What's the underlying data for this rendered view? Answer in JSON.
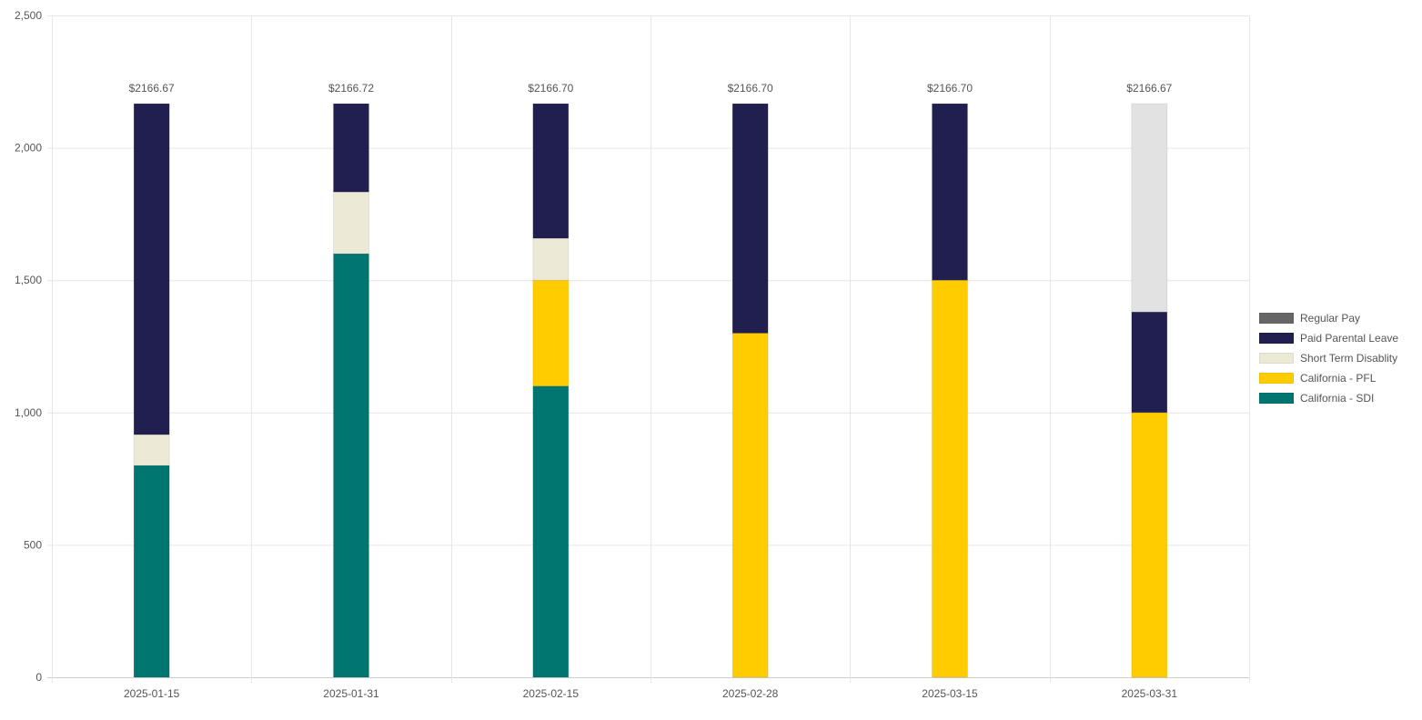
{
  "chart_data": {
    "type": "bar",
    "stacked": true,
    "categories": [
      "2025-01-15",
      "2025-01-31",
      "2025-02-15",
      "2025-02-28",
      "2025-03-15",
      "2025-03-31"
    ],
    "ylim": [
      0,
      2500
    ],
    "yticks": [
      0,
      500,
      1000,
      1500,
      2000,
      2500
    ],
    "ytick_labels": [
      "0",
      "500",
      "1,000",
      "1,500",
      "2,000",
      "2,500"
    ],
    "grid": true,
    "legend_position": "right",
    "totals": [
      "$2166.67",
      "$2166.72",
      "$2166.70",
      "$2166.70",
      "$2166.70",
      "$2166.67"
    ],
    "series": [
      {
        "name": "California - SDI",
        "color": "#017570",
        "values": [
          800,
          1600,
          1100,
          0,
          0,
          0
        ]
      },
      {
        "name": "California - PFL",
        "color": "#FFCC00",
        "values": [
          0,
          0,
          400,
          1300,
          1500,
          1000
        ]
      },
      {
        "name": "Short Term Disablity",
        "color": "#EDE9D7",
        "values": [
          116.67,
          233.3,
          158.3,
          0,
          0,
          0
        ]
      },
      {
        "name": "Paid Parental Leave",
        "color": "#211F4F",
        "values": [
          1250,
          333.42,
          508.4,
          866.7,
          666.7,
          380
        ]
      },
      {
        "name": "Regular Pay",
        "color": "#666666",
        "values": [
          0,
          0,
          0,
          0,
          0,
          0
        ]
      },
      {
        "name": "",
        "color": "#E2E2E2",
        "values": [
          0,
          0,
          0,
          0,
          0,
          786.67
        ]
      }
    ],
    "legend": [
      {
        "label": "Regular Pay",
        "color": "#666666"
      },
      {
        "label": "Paid Parental Leave",
        "color": "#211F4F"
      },
      {
        "label": "Short Term Disablity",
        "color": "#EDE9D7"
      },
      {
        "label": "California - PFL",
        "color": "#FFCC00"
      },
      {
        "label": "California - SDI",
        "color": "#017570"
      }
    ]
  }
}
